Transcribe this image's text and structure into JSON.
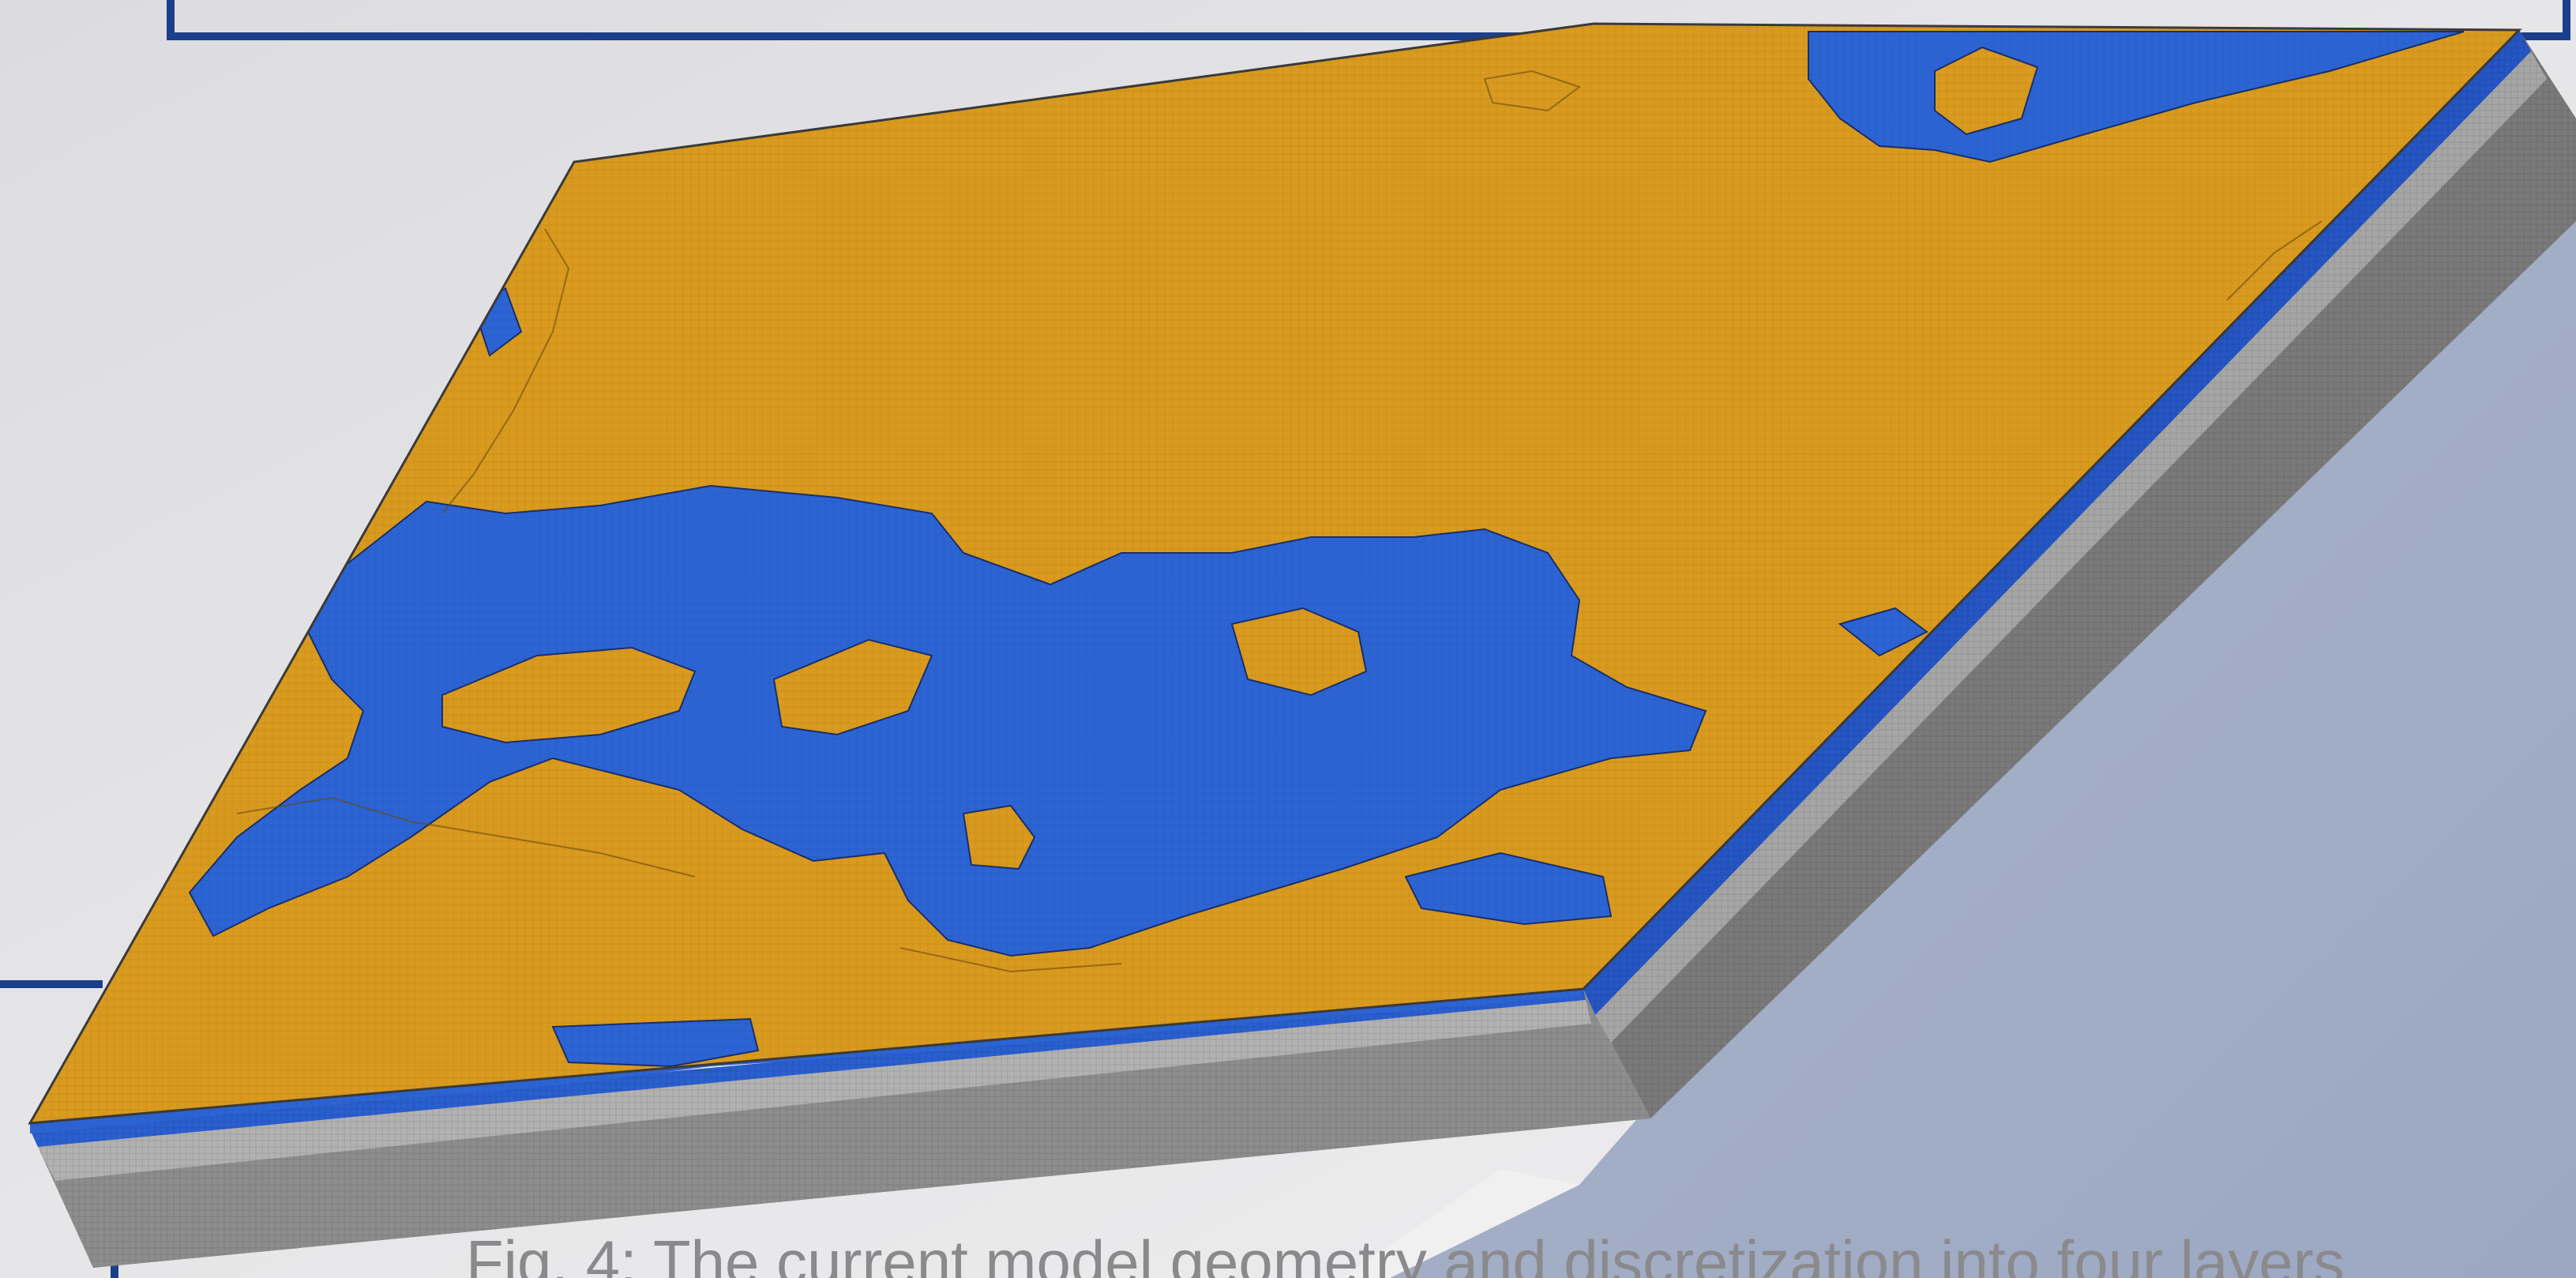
{
  "figure": {
    "caption": "Fig. 4: The current model geometry and discretization into four layers",
    "colors": {
      "background": "#e4e4e6",
      "slate_panel": "#a3adc6",
      "frame_blue": "#1b3f8b",
      "surface_orange": "#d99a1e",
      "surface_blue": "#2c64d4",
      "side_gray": "#7a7a7a",
      "side_gray_light": "#a4a4a4"
    }
  }
}
